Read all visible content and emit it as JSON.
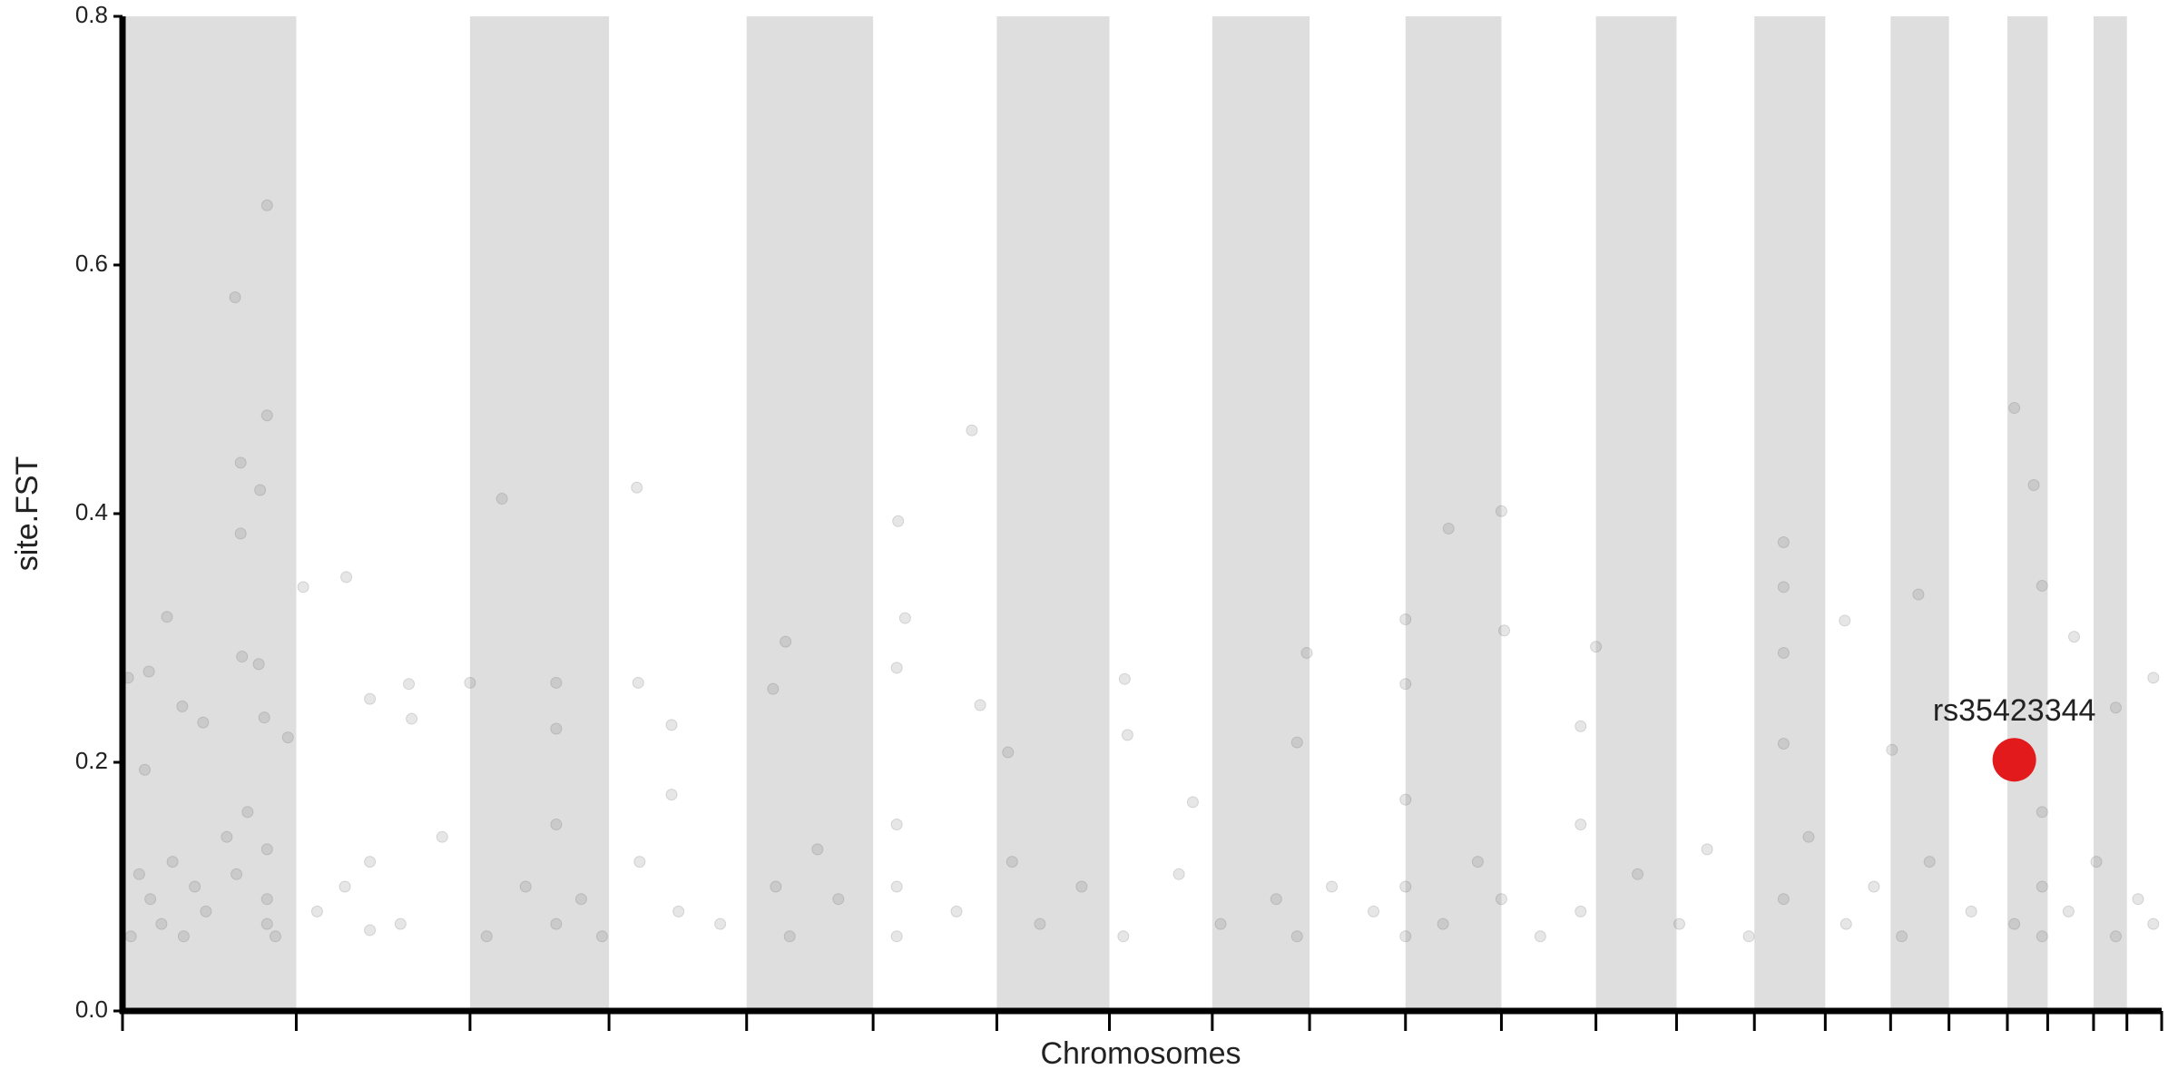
{
  "chart_data": {
    "type": "scatter",
    "y_label": "site.FST",
    "x_label": "Chromosomes",
    "xlim": [
      0,
      1467
    ],
    "ylim": [
      0,
      0.8
    ],
    "xticks": [
      0,
      125,
      250,
      350,
      449,
      540,
      629,
      710,
      784,
      854,
      923,
      992,
      1060,
      1118,
      1174,
      1225,
      1272,
      1314,
      1356,
      1385,
      1418,
      1442,
      1467
    ],
    "yticks": [
      {
        "value": 0,
        "label": "0.0"
      },
      0.2,
      0.4,
      0.6,
      0.8
    ],
    "shade_alternate": true,
    "shade_color": "#dedede",
    "color": "#555555",
    "x": [
      4,
      16,
      19,
      32,
      43,
      58,
      81,
      85,
      85,
      99,
      104,
      104,
      86,
      98,
      102,
      119,
      130,
      161,
      178,
      206,
      208,
      250,
      273,
      312,
      312,
      370,
      371,
      395,
      395,
      468,
      477,
      558,
      563,
      557,
      611,
      617,
      637,
      721,
      723,
      770,
      852,
      845,
      923,
      923,
      954,
      992,
      994,
      1060,
      1049,
      1195,
      1195,
      1195,
      1195,
      1239,
      1292,
      1273,
      1361,
      1375,
      1381,
      1404,
      1434,
      1461,
      6,
      12,
      20,
      28,
      36,
      44,
      52,
      60,
      75,
      82,
      90,
      104,
      104,
      104,
      110,
      140,
      160,
      178,
      178,
      200,
      230,
      262,
      290,
      312,
      312,
      330,
      345,
      372,
      400,
      430,
      470,
      480,
      500,
      515,
      557,
      557,
      557,
      600,
      640,
      660,
      690,
      720,
      760,
      790,
      830,
      845,
      870,
      900,
      923,
      923,
      923,
      950,
      975,
      992,
      1020,
      1049,
      1049,
      1090,
      1120,
      1140,
      1170,
      1195,
      1213,
      1240,
      1260,
      1280,
      1300,
      1330,
      1361,
      1381,
      1381,
      1381,
      1400,
      1420,
      1434,
      1450,
      1461
    ],
    "values": [
      0.268,
      0.194,
      0.273,
      0.317,
      0.245,
      0.232,
      0.574,
      0.441,
      0.384,
      0.419,
      0.648,
      0.479,
      0.285,
      0.279,
      0.236,
      0.22,
      0.341,
      0.349,
      0.251,
      0.263,
      0.235,
      0.264,
      0.412,
      0.264,
      0.227,
      0.421,
      0.264,
      0.23,
      0.174,
      0.259,
      0.297,
      0.394,
      0.316,
      0.276,
      0.467,
      0.246,
      0.208,
      0.267,
      0.222,
      0.168,
      0.288,
      0.216,
      0.315,
      0.263,
      0.388,
      0.402,
      0.306,
      0.293,
      0.229,
      0.377,
      0.341,
      0.288,
      0.215,
      0.314,
      0.335,
      0.21,
      0.485,
      0.423,
      0.342,
      0.301,
      0.244,
      0.268,
      0.06,
      0.11,
      0.09,
      0.07,
      0.12,
      0.06,
      0.1,
      0.08,
      0.14,
      0.11,
      0.16,
      0.07,
      0.09,
      0.13,
      0.06,
      0.08,
      0.1,
      0.065,
      0.12,
      0.07,
      0.14,
      0.06,
      0.1,
      0.07,
      0.15,
      0.09,
      0.06,
      0.12,
      0.08,
      0.07,
      0.1,
      0.06,
      0.13,
      0.09,
      0.06,
      0.1,
      0.15,
      0.08,
      0.12,
      0.07,
      0.1,
      0.06,
      0.11,
      0.07,
      0.09,
      0.06,
      0.1,
      0.08,
      0.06,
      0.1,
      0.17,
      0.07,
      0.12,
      0.09,
      0.06,
      0.08,
      0.15,
      0.11,
      0.07,
      0.13,
      0.06,
      0.09,
      0.14,
      0.07,
      0.1,
      0.06,
      0.12,
      0.08,
      0.07,
      0.06,
      0.1,
      0.16,
      0.08,
      0.12,
      0.06,
      0.09,
      0.07
    ],
    "highlight": {
      "label": "rs35423344",
      "x": 1361,
      "value": 0.202,
      "color": "#e31a1c"
    }
  }
}
